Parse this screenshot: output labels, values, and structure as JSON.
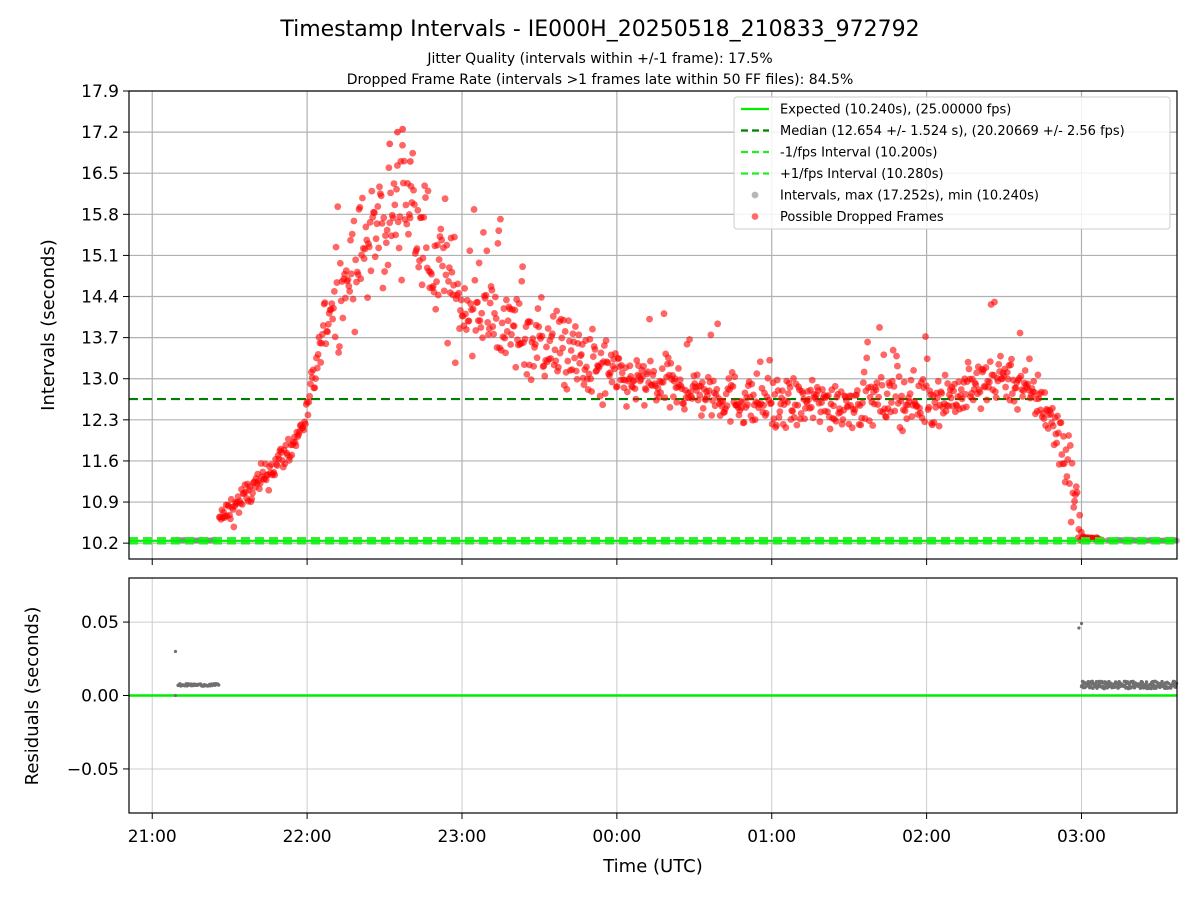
{
  "figure": {
    "title": "Timestamp Intervals - IE000H_20250518_210833_972792",
    "subtitle_1": "Jitter Quality (intervals within +/-1 frame): 17.5%",
    "subtitle_2": "Dropped Frame Rate (intervals >1 frames late within 50 FF files): 84.5%"
  },
  "chart_data": [
    {
      "type": "scatter",
      "panel": "top",
      "ylabel": "Intervals (seconds)",
      "xlabel": "",
      "x_range": [
        "20:51",
        "03:37"
      ],
      "ylim": [
        9.93,
        17.9
      ],
      "x_ticks": [
        "21:00",
        "22:00",
        "23:00",
        "00:00",
        "01:00",
        "02:00",
        "03:00"
      ],
      "y_ticks": [
        "10.2",
        "10.9",
        "11.6",
        "12.3",
        "13.0",
        "13.7",
        "14.4",
        "15.1",
        "15.8",
        "16.5",
        "17.2",
        "17.9"
      ],
      "grid": true,
      "legend_position": "top-right",
      "legend": [
        {
          "label": "Expected (10.240s), (25.00000 fps)",
          "style": "solid",
          "color": "#00ee00"
        },
        {
          "label": "Median (12.654 +/- 1.524 s), (20.20669 +/- 2.56 fps)",
          "style": "dashed",
          "color": "#008000"
        },
        {
          "label": "-1/fps Interval (10.200s)",
          "style": "dashed",
          "color": "#22ee22"
        },
        {
          "label": "+1/fps Interval (10.280s)",
          "style": "dashed",
          "color": "#22ee22"
        },
        {
          "label": "Intervals, max (17.252s), min (10.240s)",
          "style": "marker",
          "color": "#909090"
        },
        {
          "label": "Possible Dropped Frames",
          "style": "marker",
          "color": "#ff2020"
        }
      ],
      "reference_lines": {
        "expected": 10.24,
        "median": 12.654,
        "minus_one_fps": 10.2,
        "plus_one_fps": 10.28
      },
      "series": [
        {
          "name": "Possible Dropped Frames",
          "color": "#ff0000",
          "trend": [
            {
              "x": "21:26",
              "y": 10.6
            },
            {
              "x": "21:40",
              "y": 11.15
            },
            {
              "x": "21:55",
              "y": 11.9
            },
            {
              "x": "22:00",
              "y": 12.4
            },
            {
              "x": "22:08",
              "y": 14.1
            },
            {
              "x": "22:20",
              "y": 15.1
            },
            {
              "x": "22:30",
              "y": 15.6
            },
            {
              "x": "22:38",
              "y": 16.1
            },
            {
              "x": "22:45",
              "y": 15.2
            },
            {
              "x": "23:00",
              "y": 14.3
            },
            {
              "x": "23:30",
              "y": 13.6
            },
            {
              "x": "00:00",
              "y": 13.0
            },
            {
              "x": "00:30",
              "y": 12.8
            },
            {
              "x": "01:00",
              "y": 12.55
            },
            {
              "x": "01:30",
              "y": 12.6
            },
            {
              "x": "02:00",
              "y": 12.65
            },
            {
              "x": "02:15",
              "y": 12.75
            },
            {
              "x": "02:30",
              "y": 13.1
            },
            {
              "x": "02:45",
              "y": 12.6
            },
            {
              "x": "02:55",
              "y": 11.6
            },
            {
              "x": "03:00",
              "y": 10.3
            },
            {
              "x": "03:08",
              "y": 10.26
            }
          ]
        },
        {
          "name": "Intervals, max (17.252s), min (10.240s)",
          "color": "#808080",
          "trend": [
            {
              "x": "21:08",
              "y": 10.25
            },
            {
              "x": "21:25",
              "y": 10.25
            },
            {
              "x": "03:10",
              "y": 10.25
            },
            {
              "x": "03:37",
              "y": 10.25
            }
          ]
        }
      ]
    },
    {
      "type": "scatter",
      "panel": "bottom",
      "xlabel": "Time (UTC)",
      "ylabel": "Residuals (seconds)",
      "x_range": [
        "20:51",
        "03:37"
      ],
      "ylim": [
        -0.08,
        0.08
      ],
      "x_ticks": [
        "21:00",
        "22:00",
        "23:00",
        "00:00",
        "01:00",
        "02:00",
        "03:00"
      ],
      "y_ticks": [
        "−0.05",
        "0.00",
        "0.05"
      ],
      "grid": true,
      "series": [
        {
          "name": "Residuals",
          "color": "#707070",
          "points": [
            {
              "x": "21:09",
              "y": 0.03
            },
            {
              "x": "21:09",
              "y": 0.0
            },
            {
              "x": "21:10",
              "y": 0.008
            },
            {
              "x": "21:17",
              "y": 0.007
            },
            {
              "x": "21:26",
              "y": 0.007
            },
            {
              "x": "02:59",
              "y": 0.046
            },
            {
              "x": "03:00",
              "y": 0.049
            },
            {
              "x": "03:00",
              "y": 0.009
            },
            {
              "x": "03:05",
              "y": 0.006
            },
            {
              "x": "03:20",
              "y": 0.008
            },
            {
              "x": "03:37",
              "y": 0.007
            }
          ]
        },
        {
          "name": "zero",
          "color": "#00ee00",
          "y": 0.0
        }
      ]
    }
  ]
}
